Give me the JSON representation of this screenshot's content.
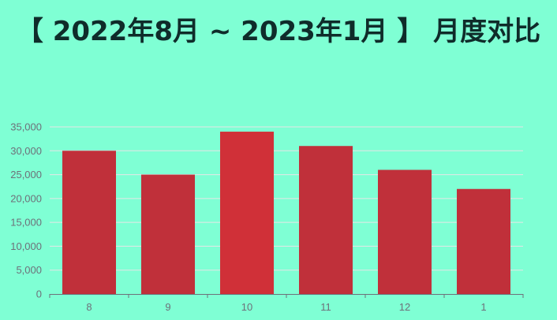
{
  "colors": {
    "background": "#7fffd4",
    "title": "#0f2c2a",
    "bar": "#c0303a",
    "bar_highlight": "#d03038",
    "grid": "#e6e6e6",
    "axis": "#6e7079"
  },
  "chart_data": {
    "type": "bar",
    "title": "【 2022年8月 ~ 2023年1月 】 月度对比",
    "xlabel": "",
    "ylabel": "",
    "categories": [
      "8",
      "9",
      "10",
      "11",
      "12",
      "1"
    ],
    "values": [
      30000,
      25000,
      34000,
      31000,
      26000,
      22000
    ],
    "highlight_index": 2,
    "ylim": [
      0,
      35000
    ],
    "y_ticks": [
      0,
      5000,
      10000,
      15000,
      20000,
      25000,
      30000,
      35000
    ],
    "y_tick_labels": [
      "0",
      "5,000",
      "10,000",
      "15,000",
      "20,000",
      "25,000",
      "30,000",
      "35,000"
    ],
    "grid": true,
    "legend": "none"
  }
}
